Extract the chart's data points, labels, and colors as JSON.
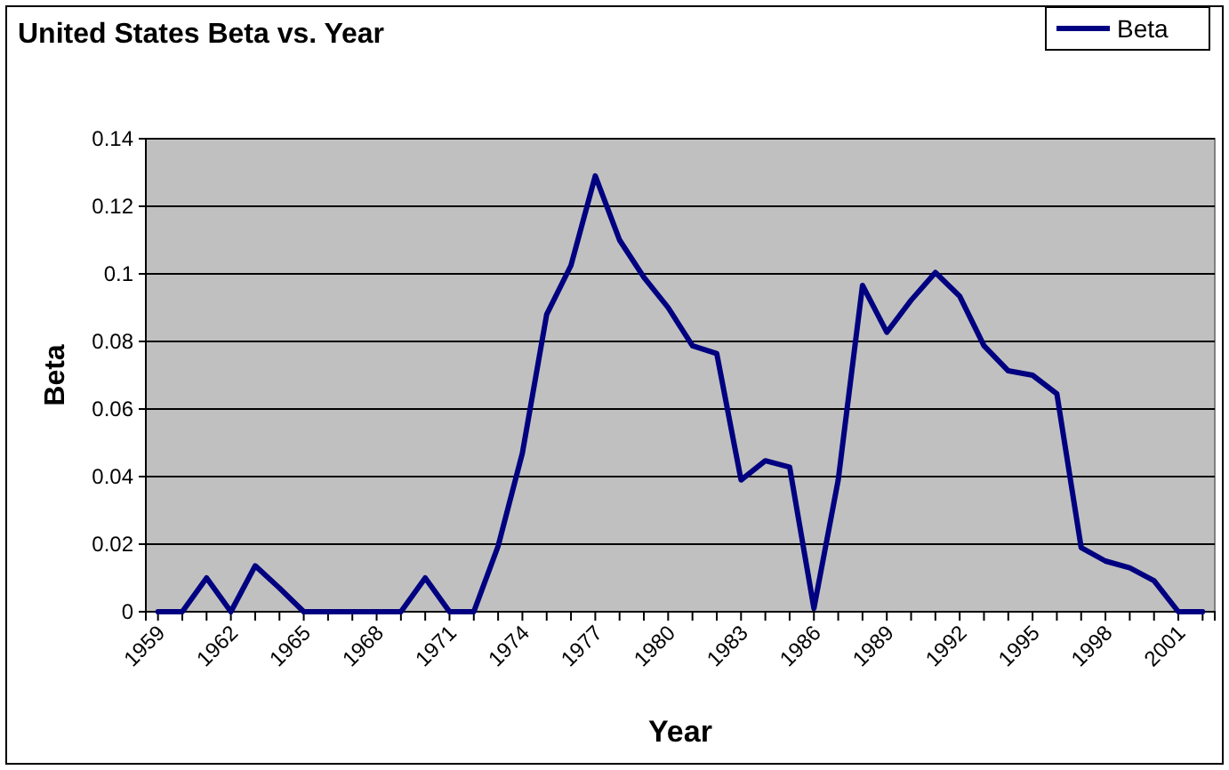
{
  "chart_data": {
    "type": "line",
    "title": "United States Beta vs. Year",
    "xlabel": "Year",
    "ylabel": "Beta",
    "categories": [
      "1959",
      null,
      null,
      "1962",
      null,
      null,
      "1965",
      null,
      null,
      "1968",
      null,
      null,
      "1971",
      null,
      null,
      "1974",
      null,
      null,
      "1977",
      null,
      null,
      "1980",
      null,
      null,
      "1983",
      null,
      null,
      "1986",
      null,
      null,
      "1989",
      null,
      null,
      "1992",
      null,
      null,
      "1995",
      null,
      null,
      "1998",
      null,
      null,
      "2001",
      null
    ],
    "series": [
      {
        "name": "Beta",
        "color": "#000080",
        "values": [
          0,
          0,
          0.01,
          0,
          0.0136,
          0.007,
          0,
          0,
          0,
          0,
          0,
          0.01,
          0,
          0,
          0.0194,
          0.047,
          0.088,
          0.1025,
          0.129,
          0.11,
          0.099,
          0.09,
          0.0787,
          0.0764,
          0.039,
          0.0447,
          0.0428,
          0.001,
          0.039,
          0.0966,
          0.0827,
          0.0922,
          0.1004,
          0.0934,
          0.0787,
          0.0713,
          0.07,
          0.0645,
          0.019,
          0.015,
          0.013,
          0.0092,
          0,
          0
        ]
      }
    ],
    "ylim": [
      0,
      0.14
    ],
    "yticks": [
      0,
      0.02,
      0.04,
      0.06,
      0.08,
      0.1,
      0.12,
      0.14
    ],
    "grid": "y",
    "legend": "top right",
    "marker": "none",
    "line_style": "solid"
  }
}
